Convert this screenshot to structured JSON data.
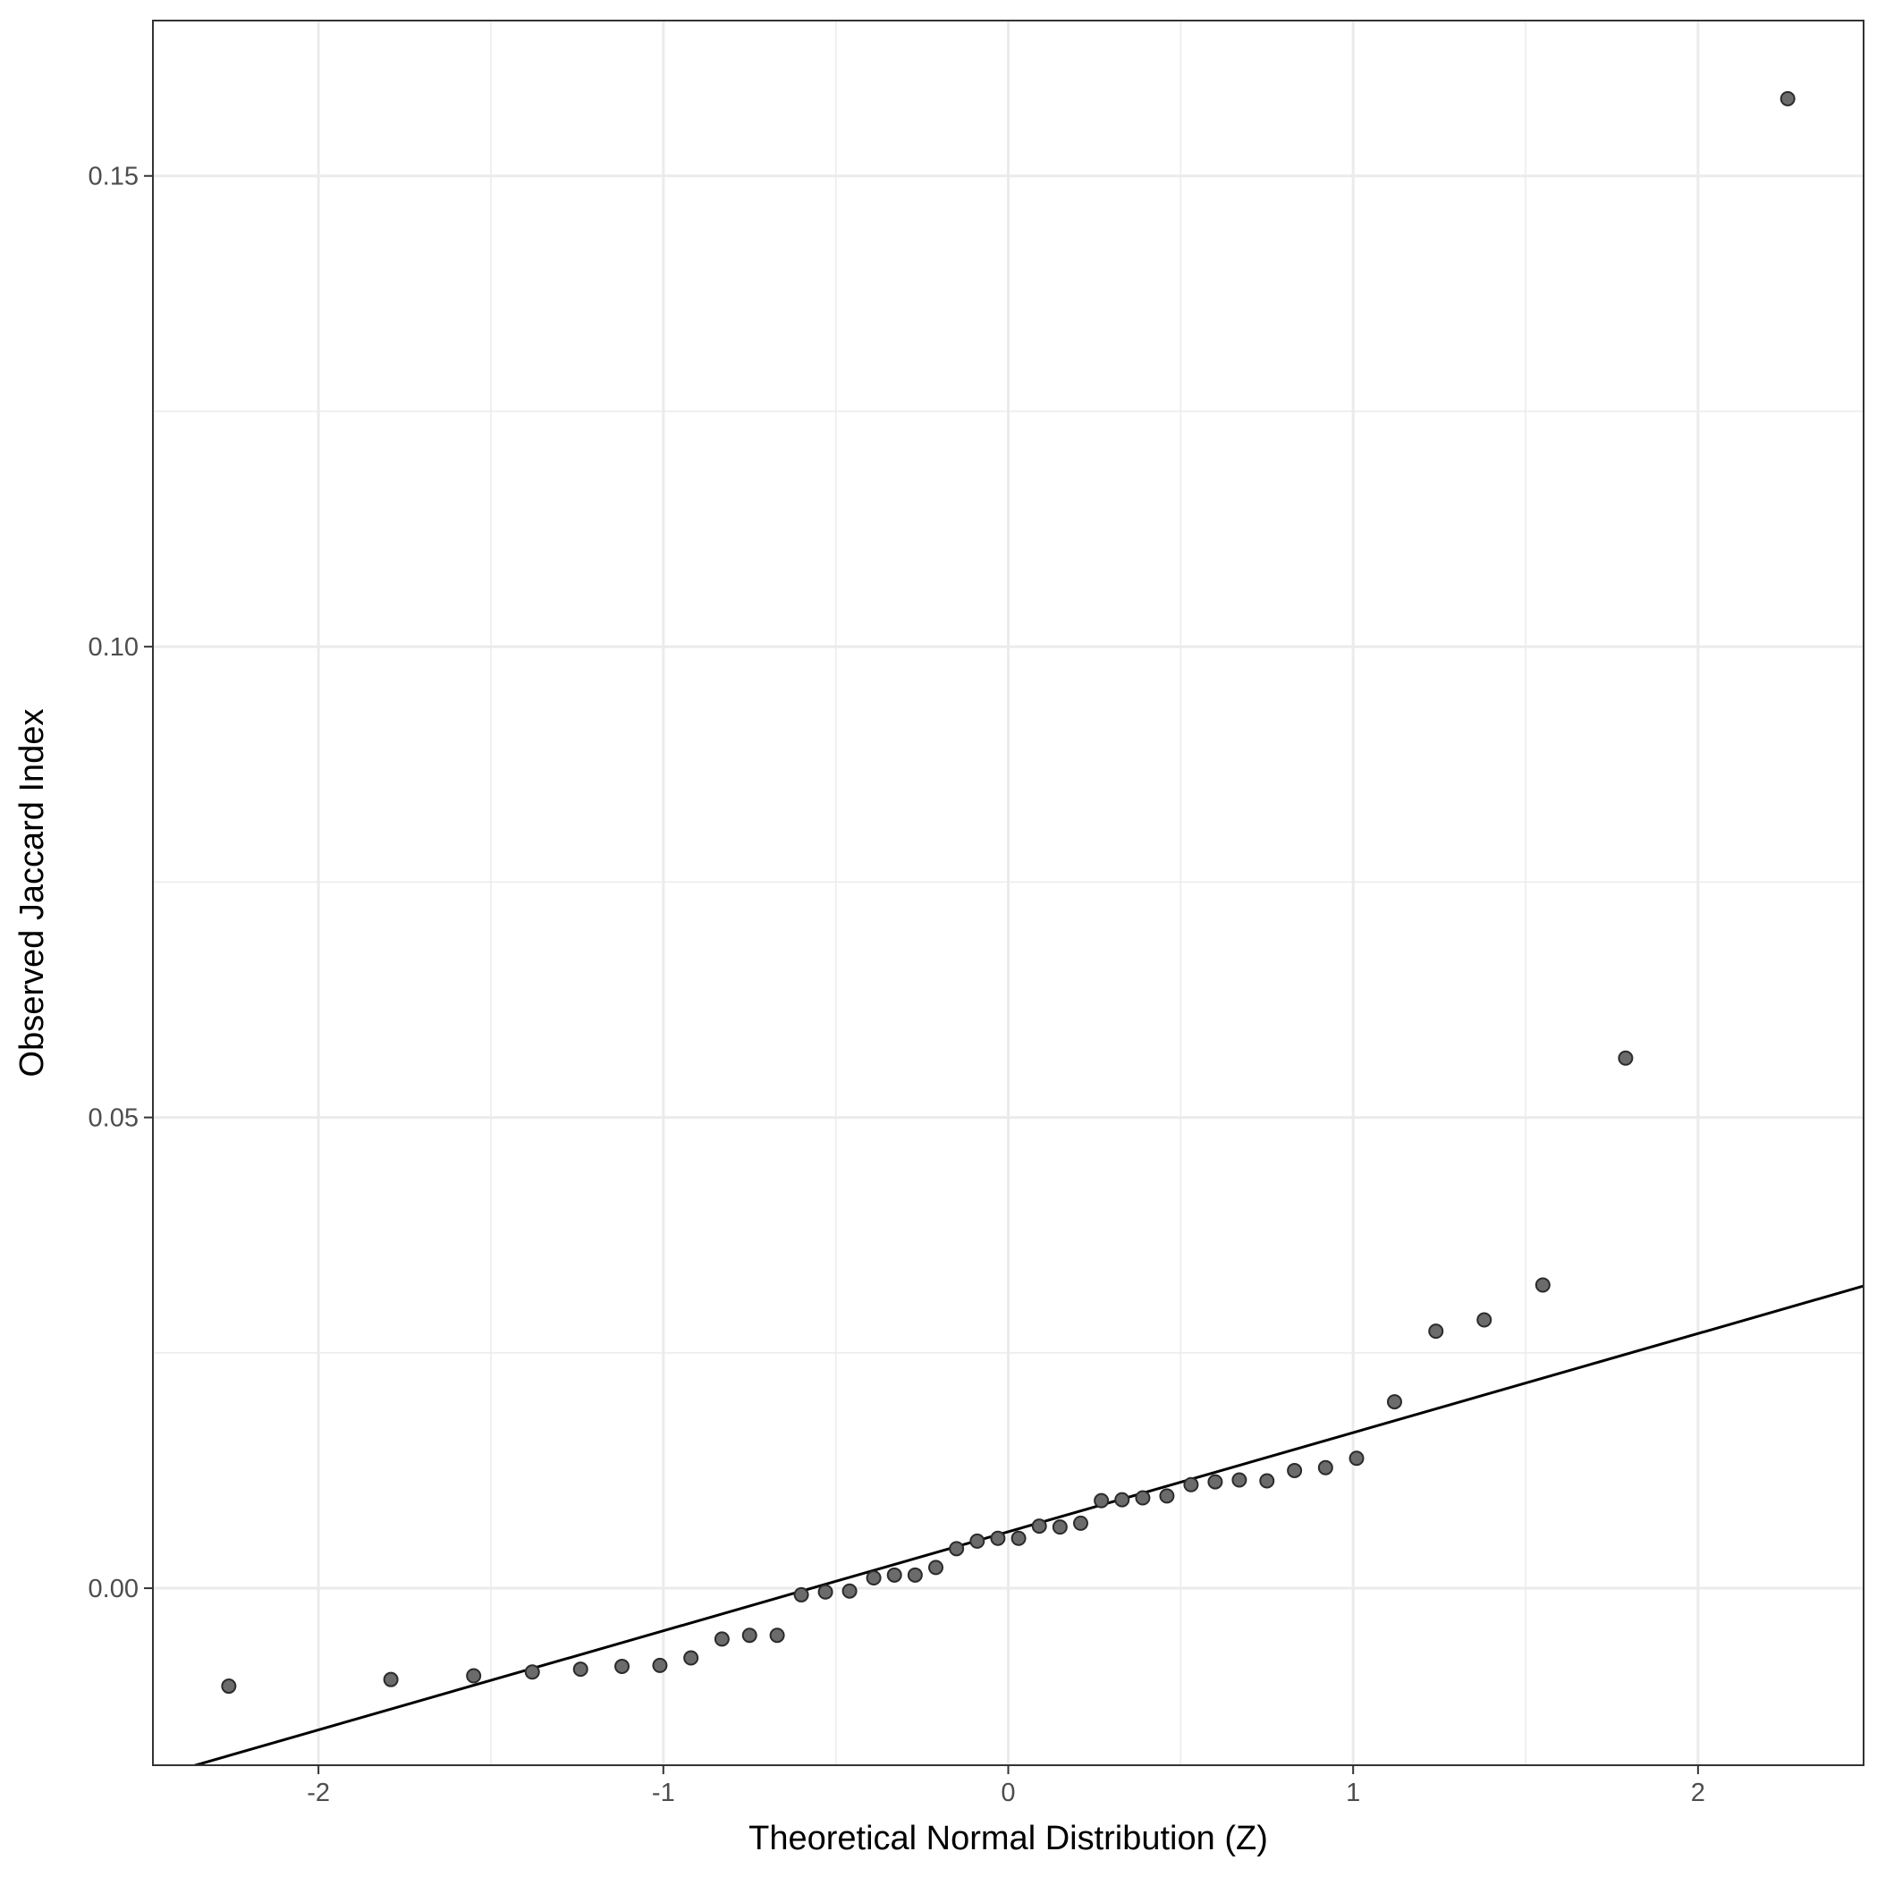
{
  "chart_data": {
    "type": "scatter",
    "title": "",
    "xlabel": "Theoretical Normal Distribution (Z)",
    "ylabel": "Observed Jaccard Index",
    "xlim": [
      -2.48,
      2.48
    ],
    "ylim": [
      -0.0188,
      0.1665
    ],
    "x_ticks": [
      -2,
      -1,
      0,
      1,
      2
    ],
    "x_tick_labels": [
      "-2",
      "-1",
      "0",
      "1",
      "2"
    ],
    "y_ticks": [
      0.0,
      0.05,
      0.1,
      0.15
    ],
    "y_tick_labels": [
      "0.00",
      "0.05",
      "0.10",
      "0.15"
    ],
    "grid": true,
    "legend": "none",
    "points": [
      {
        "x": -2.26,
        "y": -0.0104
      },
      {
        "x": -1.79,
        "y": -0.0097
      },
      {
        "x": -1.55,
        "y": -0.0093
      },
      {
        "x": -1.38,
        "y": -0.0089
      },
      {
        "x": -1.24,
        "y": -0.0086
      },
      {
        "x": -1.12,
        "y": -0.0083
      },
      {
        "x": -1.01,
        "y": -0.0082
      },
      {
        "x": -0.92,
        "y": -0.0074
      },
      {
        "x": -0.83,
        "y": -0.0054
      },
      {
        "x": -0.75,
        "y": -0.005
      },
      {
        "x": -0.67,
        "y": -0.005
      },
      {
        "x": -0.6,
        "y": -0.0007
      },
      {
        "x": -0.53,
        "y": -0.0004
      },
      {
        "x": -0.46,
        "y": -0.0003
      },
      {
        "x": -0.39,
        "y": 0.0011
      },
      {
        "x": -0.33,
        "y": 0.0014
      },
      {
        "x": -0.27,
        "y": 0.0014
      },
      {
        "x": -0.21,
        "y": 0.0022
      },
      {
        "x": -0.15,
        "y": 0.0042
      },
      {
        "x": -0.09,
        "y": 0.005
      },
      {
        "x": -0.03,
        "y": 0.0053
      },
      {
        "x": 0.03,
        "y": 0.0053
      },
      {
        "x": 0.09,
        "y": 0.0066
      },
      {
        "x": 0.15,
        "y": 0.0065
      },
      {
        "x": 0.21,
        "y": 0.0069
      },
      {
        "x": 0.27,
        "y": 0.0093
      },
      {
        "x": 0.33,
        "y": 0.0094
      },
      {
        "x": 0.39,
        "y": 0.0096
      },
      {
        "x": 0.46,
        "y": 0.0098
      },
      {
        "x": 0.53,
        "y": 0.011
      },
      {
        "x": 0.6,
        "y": 0.0113
      },
      {
        "x": 0.67,
        "y": 0.0115
      },
      {
        "x": 0.75,
        "y": 0.0114
      },
      {
        "x": 0.83,
        "y": 0.0125
      },
      {
        "x": 0.92,
        "y": 0.0128
      },
      {
        "x": 1.01,
        "y": 0.0138
      },
      {
        "x": 1.12,
        "y": 0.0198
      },
      {
        "x": 1.24,
        "y": 0.0273
      },
      {
        "x": 1.38,
        "y": 0.0285
      },
      {
        "x": 1.55,
        "y": 0.0322
      },
      {
        "x": 1.79,
        "y": 0.0563
      },
      {
        "x": 2.26,
        "y": 0.1582
      }
    ],
    "reference_line": {
      "x1": -2.48,
      "y1": -0.0201,
      "x2": 2.48,
      "y2": 0.0321
    },
    "point_color": "#6b6b6b",
    "point_stroke": "#2b2b2b",
    "line_color": "#000000"
  }
}
